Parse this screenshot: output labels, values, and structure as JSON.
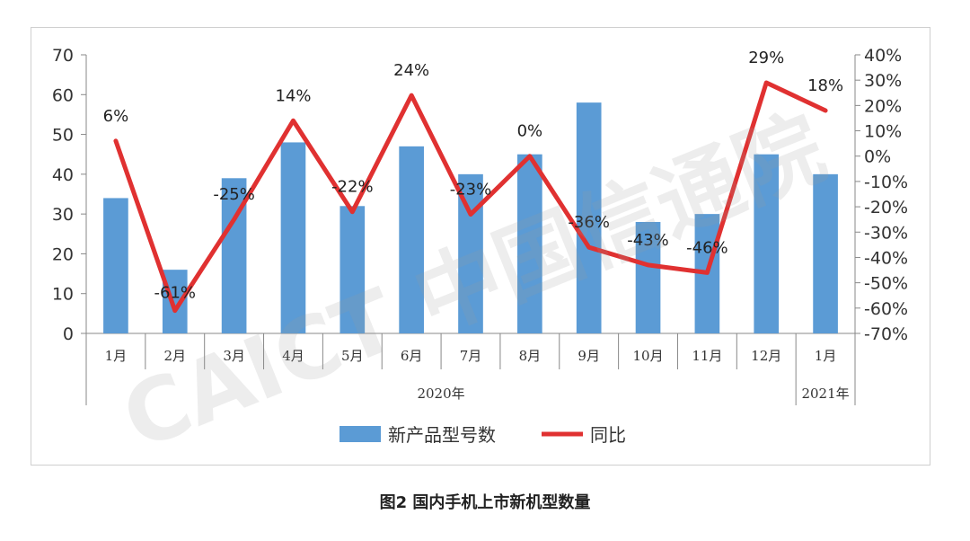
{
  "chart_data": {
    "type": "bar",
    "categories": [
      "1月",
      "2月",
      "3月",
      "4月",
      "5月",
      "6月",
      "7月",
      "8月",
      "9月",
      "10月",
      "11月",
      "12月",
      "1月"
    ],
    "year_groups": [
      {
        "label": "2020年",
        "start": 0,
        "end": 11
      },
      {
        "label": "2021年",
        "start": 12,
        "end": 12
      }
    ],
    "series": [
      {
        "name": "新产品型号数",
        "type": "bar",
        "axis": "left",
        "color": "#5b9bd5",
        "values": [
          34,
          16,
          39,
          48,
          32,
          47,
          40,
          45,
          58,
          28,
          30,
          45,
          40
        ]
      },
      {
        "name": "同比",
        "type": "line",
        "axis": "right",
        "color": "#e03131",
        "values": [
          6,
          -61,
          -25,
          14,
          -22,
          24,
          -23,
          0,
          -36,
          -43,
          -46,
          29,
          18
        ],
        "labels": [
          "6%",
          "-61%",
          "-25%",
          "14%",
          "-22%",
          "24%",
          "-23%",
          "0%",
          "-36%",
          "-43%",
          "-46%",
          "29%",
          "18%"
        ]
      }
    ],
    "y_left": {
      "min": 0,
      "max": 70,
      "ticks": [
        "0",
        "10",
        "20",
        "30",
        "40",
        "50",
        "60",
        "70"
      ]
    },
    "y_right": {
      "min": -70,
      "max": 40,
      "ticks": [
        "-70%",
        "-60%",
        "-50%",
        "-40%",
        "-30%",
        "-20%",
        "-10%",
        "0%",
        "10%",
        "20%",
        "30%",
        "40%"
      ]
    },
    "legend_position": "bottom",
    "grid": false
  },
  "watermark": "CAICT 中国信通院",
  "caption": "图2   国内手机上市新机型数量"
}
